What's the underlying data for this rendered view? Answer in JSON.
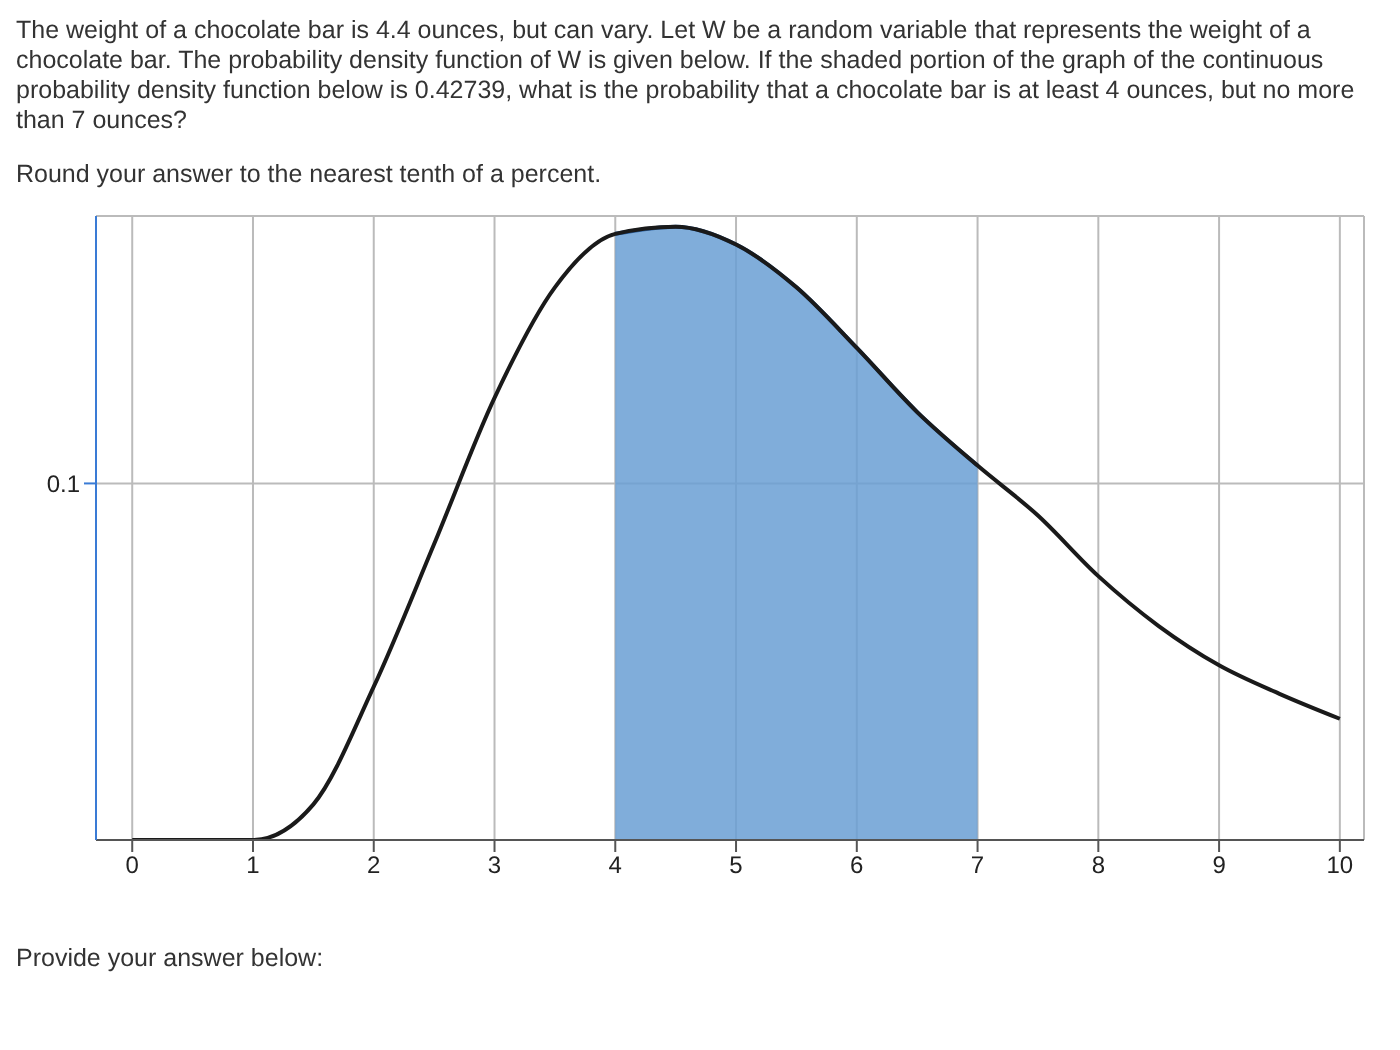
{
  "chart_data": {
    "type": "line",
    "title": "The weight of a chocolate bar is 4.4 ounces, but can vary. Let W be a random variable that represents the weight of a chocolate bar. The probability density function of W is given below. If the shaded portion of the graph of the continuous probability density function below is 0.42739, what is the probability that a chocolate bar is at least 4 ounces, but no more than 7 ounces?",
    "subtitle": "Round your answer to the nearest tenth of a percent.",
    "annotations": [
      "Provide your answer below:"
    ],
    "series": [
      {
        "type": "area",
        "color": "#6a9fd4",
        "x": [
          4,
          4.5,
          5,
          5.5,
          6,
          6.5,
          7
        ],
        "values": [
          0.17,
          0.172,
          0.167,
          0.155,
          0.138,
          0.12,
          0.105
        ]
      },
      {
        "color": "#1a1a1a",
        "x": [
          0,
          1,
          1.5,
          2,
          2.5,
          3,
          3.5,
          4,
          4.5,
          5,
          5.5,
          6,
          6.5,
          7,
          7.5,
          8,
          8.5,
          9,
          9.5,
          10
        ],
        "values": [
          0,
          0,
          0.01,
          0.043,
          0.083,
          0.124,
          0.155,
          0.17,
          0.172,
          0.167,
          0.155,
          0.138,
          0.12,
          0.105,
          0.091,
          0.074,
          0.06,
          0.049,
          0.041,
          0.034
        ]
      }
    ],
    "xlim": [
      -0.3,
      10.2
    ],
    "xticks": [
      0,
      1,
      2,
      3,
      4,
      5,
      6,
      7,
      8,
      9,
      10
    ],
    "ylim": [
      0,
      0.175
    ],
    "yticks": [
      0.1
    ],
    "grid": true
  }
}
